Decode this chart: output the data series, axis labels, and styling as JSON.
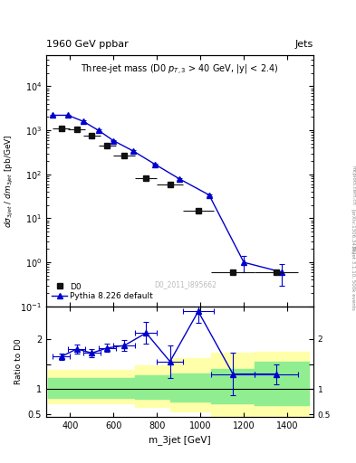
{
  "title_top": "1960 GeV ppbar",
  "title_top_right": "Jets",
  "subtitle": "Three-jet mass (D0 $p_{T,3}$ > 40 GeV, |y| < 2.4)",
  "watermark": "D0_2011_I895662",
  "ylabel_main": "dσ_3jet / dm_3jet [pb/GeV]",
  "ylabel_ratio": "Ratio to D0",
  "xlabel": "m_3jet [GeV]",
  "right_label": "Rivet 3.1.10, 500k events",
  "right_label2": "[arXiv:1306.3436]",
  "right_label3": "mcplots.cern.ch",
  "d0_x": [
    360,
    430,
    500,
    570,
    650,
    750,
    860,
    990,
    1150,
    1350
  ],
  "d0_y": [
    1100,
    1050,
    760,
    440,
    270,
    80,
    60,
    15,
    0.6,
    0.6
  ],
  "d0_xerr": [
    40,
    40,
    40,
    40,
    50,
    50,
    60,
    70,
    100,
    100
  ],
  "pythia_x": [
    320,
    390,
    460,
    530,
    600,
    690,
    790,
    905,
    1040,
    1200,
    1375
  ],
  "pythia_y": [
    2200,
    2200,
    1600,
    1000,
    580,
    340,
    170,
    78,
    34,
    1.0,
    0.6
  ],
  "pythia_yerr": [
    80,
    80,
    60,
    40,
    22,
    14,
    7,
    3,
    1.5,
    0.4,
    0.3
  ],
  "ratio_x": [
    360,
    430,
    500,
    570,
    650,
    750,
    860,
    990,
    1150,
    1350
  ],
  "ratio_y": [
    1.65,
    1.8,
    1.72,
    1.82,
    1.87,
    2.12,
    1.55,
    2.55,
    1.3,
    1.3
  ],
  "ratio_xerr": [
    40,
    40,
    40,
    40,
    50,
    50,
    60,
    70,
    100,
    100
  ],
  "ratio_yerr": [
    0.06,
    0.09,
    0.08,
    0.08,
    0.1,
    0.22,
    0.32,
    0.22,
    0.42,
    0.2
  ],
  "green_band_edges": [
    300,
    540,
    700,
    860,
    1050,
    1250,
    1500
  ],
  "green_band_top": [
    1.22,
    1.22,
    1.28,
    1.32,
    1.4,
    1.55,
    1.55
  ],
  "green_band_bot": [
    0.83,
    0.83,
    0.8,
    0.76,
    0.72,
    0.68,
    0.68
  ],
  "yellow_band_edges": [
    300,
    540,
    700,
    860,
    1050,
    1250,
    1500
  ],
  "yellow_band_top": [
    1.38,
    1.38,
    1.48,
    1.62,
    1.72,
    1.75,
    1.75
  ],
  "yellow_band_bot": [
    0.72,
    0.72,
    0.65,
    0.56,
    0.46,
    0.4,
    0.4
  ],
  "d0_color": "#111111",
  "pythia_color": "#0000cc",
  "green_color": "#90ee90",
  "yellow_color": "#ffffaa",
  "main_ylim": [
    0.1,
    50000
  ],
  "ratio_ylim": [
    0.45,
    2.65
  ],
  "xlim": [
    290,
    1520
  ]
}
